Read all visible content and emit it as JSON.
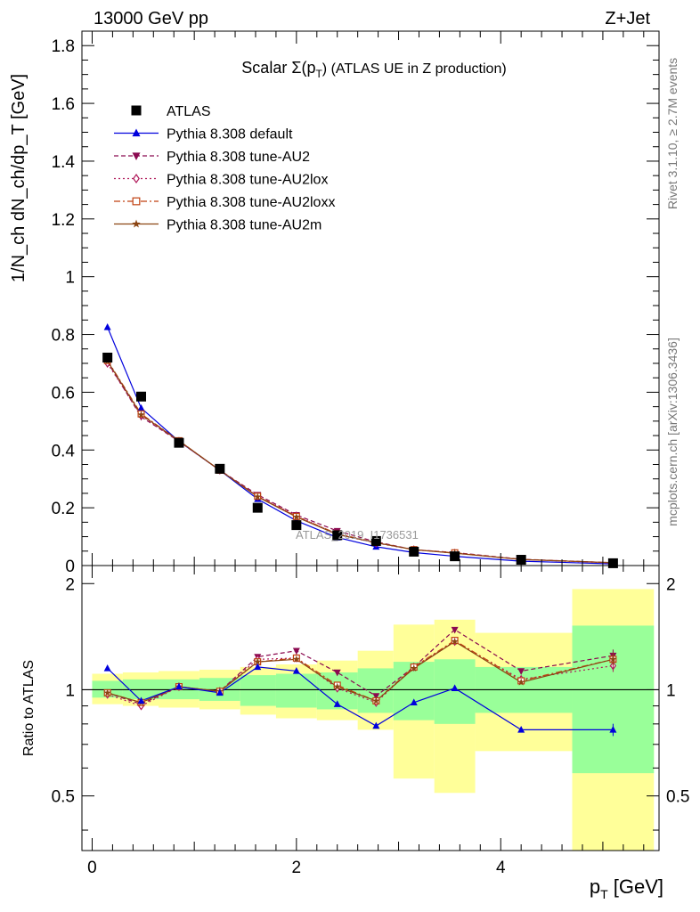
{
  "header": {
    "left_title": "13000 GeV pp",
    "right_title": "Z+Jet"
  },
  "side_labels": {
    "rivet": "Rivet 3.1.10, ≥ 2.7M events",
    "mcplots": "mcplots.cern.ch [arXiv:1306.3436]"
  },
  "chart_data": [
    {
      "type": "line",
      "panel": "main",
      "title_main": "Scalar Σ(p",
      "title_sub": "T",
      "title_rest": ") (ATLAS UE in Z production)",
      "watermark": "ATLAS_2019_I1736531",
      "ylabel": "1/N_ch dN_ch/dp_T [GeV]",
      "ylim": [
        0,
        1.85
      ],
      "xlim": [
        -0.1,
        5.55
      ],
      "yticks": [
        0,
        0.2,
        0.4,
        0.6,
        0.8,
        1,
        1.2,
        1.4,
        1.6,
        1.8
      ],
      "ytick_labels": [
        "0",
        "0.2",
        "0.4",
        "0.6",
        "0.8",
        "1",
        "1.2",
        "1.4",
        "1.6",
        "1.8"
      ],
      "legend_position": "top-left",
      "x": [
        0.15,
        0.48,
        0.85,
        1.25,
        1.62,
        2.0,
        2.4,
        2.78,
        3.15,
        3.55,
        4.2,
        5.1
      ],
      "series": [
        {
          "name": "ATLAS",
          "color": "#000000",
          "marker": "square",
          "dash": "",
          "show_line": false,
          "values": [
            0.72,
            0.585,
            0.425,
            0.335,
            0.2,
            0.14,
            0.105,
            0.085,
            0.048,
            0.032,
            0.02,
            0.008
          ]
        },
        {
          "name": "Pythia 8.308 default",
          "color": "#0000dd",
          "marker": "triangle-up",
          "dash": "",
          "values": [
            0.825,
            0.545,
            0.43,
            0.33,
            0.23,
            0.155,
            0.097,
            0.065,
            0.045,
            0.032,
            0.015,
            0.006
          ]
        },
        {
          "name": "Pythia 8.308 tune-AU2",
          "color": "#8b0a50",
          "marker": "triangle-down",
          "dash": "5,3",
          "values": [
            0.705,
            0.515,
            0.43,
            0.33,
            0.245,
            0.175,
            0.12,
            0.082,
            0.055,
            0.045,
            0.022,
            0.01
          ]
        },
        {
          "name": "Pythia 8.308 tune-AU2lox",
          "color": "#b0195a",
          "marker": "diamond-open",
          "dash": "2,3",
          "values": [
            0.7,
            0.52,
            0.43,
            0.33,
            0.24,
            0.172,
            0.108,
            0.078,
            0.055,
            0.043,
            0.021,
            0.009
          ]
        },
        {
          "name": "Pythia 8.308 tune-AU2loxx",
          "color": "#c04010",
          "marker": "square-open",
          "dash": "7,3,2,3",
          "values": [
            0.71,
            0.525,
            0.432,
            0.33,
            0.24,
            0.17,
            0.11,
            0.08,
            0.055,
            0.044,
            0.021,
            0.01
          ]
        },
        {
          "name": "Pythia 8.308 tune-AU2m",
          "color": "#8b4513",
          "marker": "star",
          "dash": "",
          "values": [
            0.708,
            0.522,
            0.432,
            0.33,
            0.238,
            0.168,
            0.108,
            0.079,
            0.055,
            0.043,
            0.021,
            0.01
          ]
        }
      ]
    },
    {
      "type": "line",
      "panel": "ratio",
      "ylabel": "Ratio to ATLAS",
      "xlabel_main": "p",
      "xlabel_sub": "T",
      "xlabel_rest": " [GeV]",
      "ylim": [
        0.35,
        2.25
      ],
      "xlim": [
        -0.1,
        5.55
      ],
      "yticks": [
        0.5,
        1,
        2
      ],
      "ytick_labels": [
        "0.5",
        "1",
        "2"
      ],
      "xticks": [
        0,
        2,
        4
      ],
      "xtick_labels": [
        "0",
        "2",
        "4"
      ],
      "reference_line": 1,
      "bands": [
        {
          "x0": 0.0,
          "x1": 0.3,
          "inner": [
            0.95,
            1.06
          ],
          "outer": [
            0.91,
            1.11
          ]
        },
        {
          "x0": 0.3,
          "x1": 0.65,
          "inner": [
            0.94,
            1.07
          ],
          "outer": [
            0.9,
            1.12
          ]
        },
        {
          "x0": 0.65,
          "x1": 1.05,
          "inner": [
            0.94,
            1.07
          ],
          "outer": [
            0.89,
            1.13
          ]
        },
        {
          "x0": 1.05,
          "x1": 1.45,
          "inner": [
            0.93,
            1.08
          ],
          "outer": [
            0.88,
            1.14
          ]
        },
        {
          "x0": 1.45,
          "x1": 1.8,
          "inner": [
            0.9,
            1.1
          ],
          "outer": [
            0.85,
            1.16
          ]
        },
        {
          "x0": 1.8,
          "x1": 2.2,
          "inner": [
            0.89,
            1.11
          ],
          "outer": [
            0.83,
            1.18
          ]
        },
        {
          "x0": 2.2,
          "x1": 2.6,
          "inner": [
            0.88,
            1.12
          ],
          "outer": [
            0.82,
            1.21
          ]
        },
        {
          "x0": 2.6,
          "x1": 2.95,
          "inner": [
            0.86,
            1.15
          ],
          "outer": [
            0.77,
            1.29
          ]
        },
        {
          "x0": 2.95,
          "x1": 3.35,
          "inner": [
            0.82,
            1.2
          ],
          "outer": [
            0.56,
            1.53
          ]
        },
        {
          "x0": 3.35,
          "x1": 3.75,
          "inner": [
            0.8,
            1.22
          ],
          "outer": [
            0.51,
            1.58
          ]
        },
        {
          "x0": 3.75,
          "x1": 4.7,
          "inner": [
            0.86,
            1.16
          ],
          "outer": [
            0.67,
            1.45
          ]
        },
        {
          "x0": 4.7,
          "x1": 5.5,
          "inner": [
            0.58,
            1.52
          ],
          "outer": [
            0.35,
            1.93
          ]
        }
      ],
      "x": [
        0.15,
        0.48,
        0.85,
        1.25,
        1.62,
        2.0,
        2.4,
        2.78,
        3.15,
        3.55,
        4.2,
        5.1
      ],
      "series": [
        {
          "name": "Pythia 8.308 default",
          "color": "#0000dd",
          "marker": "triangle-up",
          "dash": "",
          "values": [
            1.15,
            0.93,
            1.02,
            0.98,
            1.16,
            1.13,
            0.91,
            0.79,
            0.92,
            1.01,
            0.77,
            0.77
          ]
        },
        {
          "name": "Pythia 8.308 tune-AU2",
          "color": "#8b0a50",
          "marker": "triangle-down",
          "dash": "5,3",
          "values": [
            0.98,
            0.91,
            1.02,
            0.99,
            1.24,
            1.29,
            1.12,
            0.96,
            1.16,
            1.48,
            1.13,
            1.25
          ]
        },
        {
          "name": "Pythia 8.308 tune-AU2lox",
          "color": "#b0195a",
          "marker": "diamond-open",
          "dash": "2,3",
          "values": [
            0.97,
            0.9,
            1.02,
            0.99,
            1.22,
            1.23,
            1.01,
            0.92,
            1.16,
            1.37,
            1.07,
            1.17
          ]
        },
        {
          "name": "Pythia 8.308 tune-AU2loxx",
          "color": "#c04010",
          "marker": "square-open",
          "dash": "7,3,2,3",
          "values": [
            0.98,
            0.92,
            1.02,
            0.99,
            1.2,
            1.23,
            1.03,
            0.93,
            1.16,
            1.38,
            1.06,
            1.22
          ]
        },
        {
          "name": "Pythia 8.308 tune-AU2m",
          "color": "#8b4513",
          "marker": "star",
          "dash": "",
          "values": [
            0.98,
            0.92,
            1.02,
            0.99,
            1.2,
            1.22,
            1.02,
            0.93,
            1.15,
            1.37,
            1.05,
            1.22
          ]
        }
      ]
    }
  ]
}
